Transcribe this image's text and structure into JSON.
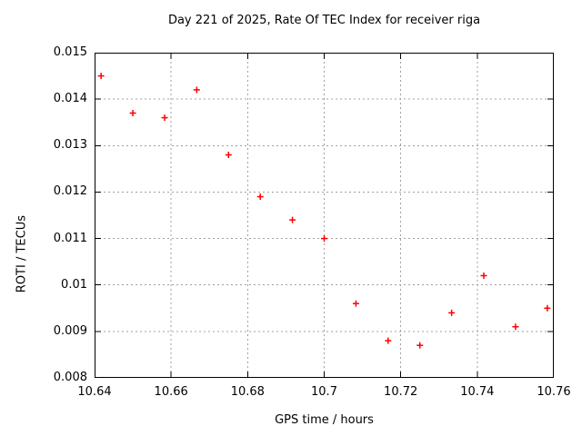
{
  "chart_data": {
    "type": "scatter",
    "title": "Day 221 of 2025, Rate Of TEC Index for receiver riga",
    "xlabel": "GPS time / hours",
    "ylabel": "ROTI / TECUs",
    "xlim": [
      10.64,
      10.76
    ],
    "ylim": [
      0.008,
      0.015
    ],
    "xticks": [
      10.64,
      10.66,
      10.68,
      10.7,
      10.72,
      10.74,
      10.76
    ],
    "xtick_labels": [
      "10.64",
      "10.66",
      "10.68",
      "10.7",
      "10.72",
      "10.74",
      "10.76"
    ],
    "yticks": [
      0.008,
      0.009,
      0.01,
      0.011,
      0.012,
      0.013,
      0.014,
      0.015
    ],
    "ytick_labels": [
      "0.008",
      "0.009",
      "0.01",
      "0.011",
      "0.012",
      "0.013",
      "0.014",
      "0.015"
    ],
    "grid": true,
    "legend": "none",
    "marker": {
      "shape": "plus",
      "color": "#ff0000",
      "size": 7
    },
    "colors": {
      "background": "#ffffff",
      "text": "#000000",
      "grid": "#a0a0a0",
      "border": "#000000"
    },
    "series": [
      {
        "x": [
          10.6417,
          10.65,
          10.6583,
          10.6667,
          10.675,
          10.6833,
          10.6917,
          10.7,
          10.7083,
          10.7167,
          10.725,
          10.7333,
          10.7417,
          10.75,
          10.7583
        ],
        "y": [
          0.0145,
          0.0137,
          0.0136,
          0.0142,
          0.0128,
          0.0119,
          0.0114,
          0.011,
          0.0096,
          0.0088,
          0.0087,
          0.0094,
          0.0102,
          0.0091,
          0.0095
        ]
      }
    ]
  }
}
